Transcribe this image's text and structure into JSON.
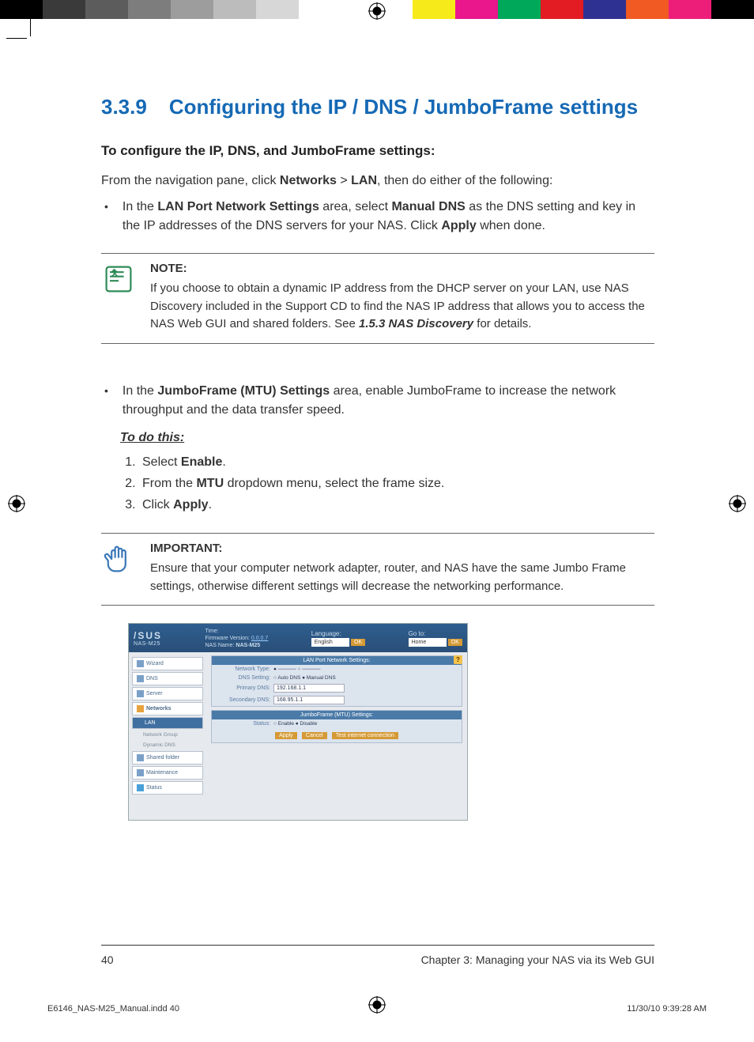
{
  "color_bar": {
    "left": [
      "#000000",
      "#3a3a3a",
      "#5c5c5c",
      "#7d7d7d",
      "#9d9d9d",
      "#bcbcbc",
      "#d7d7d7",
      "#ffffff"
    ],
    "right": [
      "#f7ea1a",
      "#e9168c",
      "#00a859",
      "#e31b23",
      "#2f3192",
      "#f15a22",
      "#ed1e79",
      "#000000"
    ]
  },
  "heading": {
    "number": "3.3.9",
    "title": "Configuring the IP / DNS / JumboFrame settings"
  },
  "lead": "To configure the IP, DNS, and JumboFrame settings:",
  "intro": {
    "pre": "From the navigation pane, click ",
    "b1": "Networks",
    "mid": " > ",
    "b2": "LAN",
    "post": ", then do either of the following:"
  },
  "bullet1": {
    "pre": "In the ",
    "b1": "LAN Port Network Settings",
    "mid": " area, select ",
    "b2": "Manual DNS",
    "post1": " as the DNS setting and key in the IP addresses of the DNS servers for your NAS. Click ",
    "b3": "Apply",
    "post2": " when done."
  },
  "note": {
    "label": "NOTE:",
    "text_pre": "If you choose to obtain a dynamic IP address from the DHCP server on your LAN, use NAS Discovery included in the Support CD to find the NAS IP address that allows you to access the NAS Web GUI and shared folders. See ",
    "ref": "1.5.3 NAS Discovery",
    "text_post": " for details."
  },
  "bullet2": {
    "pre": "In the ",
    "b1": "JumboFrame (MTU) Settings",
    "post": " area, enable JumboFrame to increase the network throughput and the data transfer speed."
  },
  "todo": {
    "heading": "To do this:"
  },
  "steps": {
    "s1_pre": "Select ",
    "s1_b": "Enable",
    "s1_post": ".",
    "s2_pre": "From the ",
    "s2_b": "MTU",
    "s2_post": " dropdown menu, select the frame size.",
    "s3_pre": "Click ",
    "s3_b": "Apply",
    "s3_post": "."
  },
  "important": {
    "label": "IMPORTANT:",
    "text": "Ensure that your computer network adapter, router, and NAS have the same Jumbo Frame settings, otherwise different settings will decrease the networking performance."
  },
  "screenshot": {
    "brand": "/SUS",
    "model": "NAS-M25",
    "hdr_time": "Time:",
    "hdr_fw_label": "Firmware Version:",
    "hdr_fw_value": "0.0.0.7",
    "hdr_nas_label": "NAS Name:",
    "hdr_nas_value": "NAS-M25",
    "lang_label": "Language:",
    "lang_value": "English",
    "goto_label": "Go to:",
    "goto_value": "Home",
    "ok": "OK",
    "nav": [
      "Wizard",
      "DNS",
      "Server",
      "Networks",
      "LAN",
      "Network Group",
      "Dynamic DNS",
      "Shared folder",
      "Maintenance",
      "Status"
    ],
    "panel1": "LAN Port Network Settings:",
    "row_netype": "Network Type:",
    "row_dns": "DNS Setting:",
    "row_dns_opts": "○ Auto DNS   ● Manual DNS",
    "row_pdns": "Primary DNS:",
    "row_pdns_v": "192.168.1.1",
    "row_sdns": "Secondary DNS:",
    "row_sdns_v": "168.95.1.1",
    "panel2": "JumboFrame (MTU) Settings:",
    "row_status": "Status:",
    "row_status_opts": "○ Enable   ● Disable",
    "btn_apply": "Apply",
    "btn_cancel": "Cancel",
    "btn_test": "Test internet connection",
    "help": "?"
  },
  "footer": {
    "page": "40",
    "chapter": "Chapter 3: Managing your NAS via its Web GUI"
  },
  "print": {
    "file": "E6146_NAS-M25_Manual.indd   40",
    "stamp": "11/30/10   9:39:28 AM"
  }
}
